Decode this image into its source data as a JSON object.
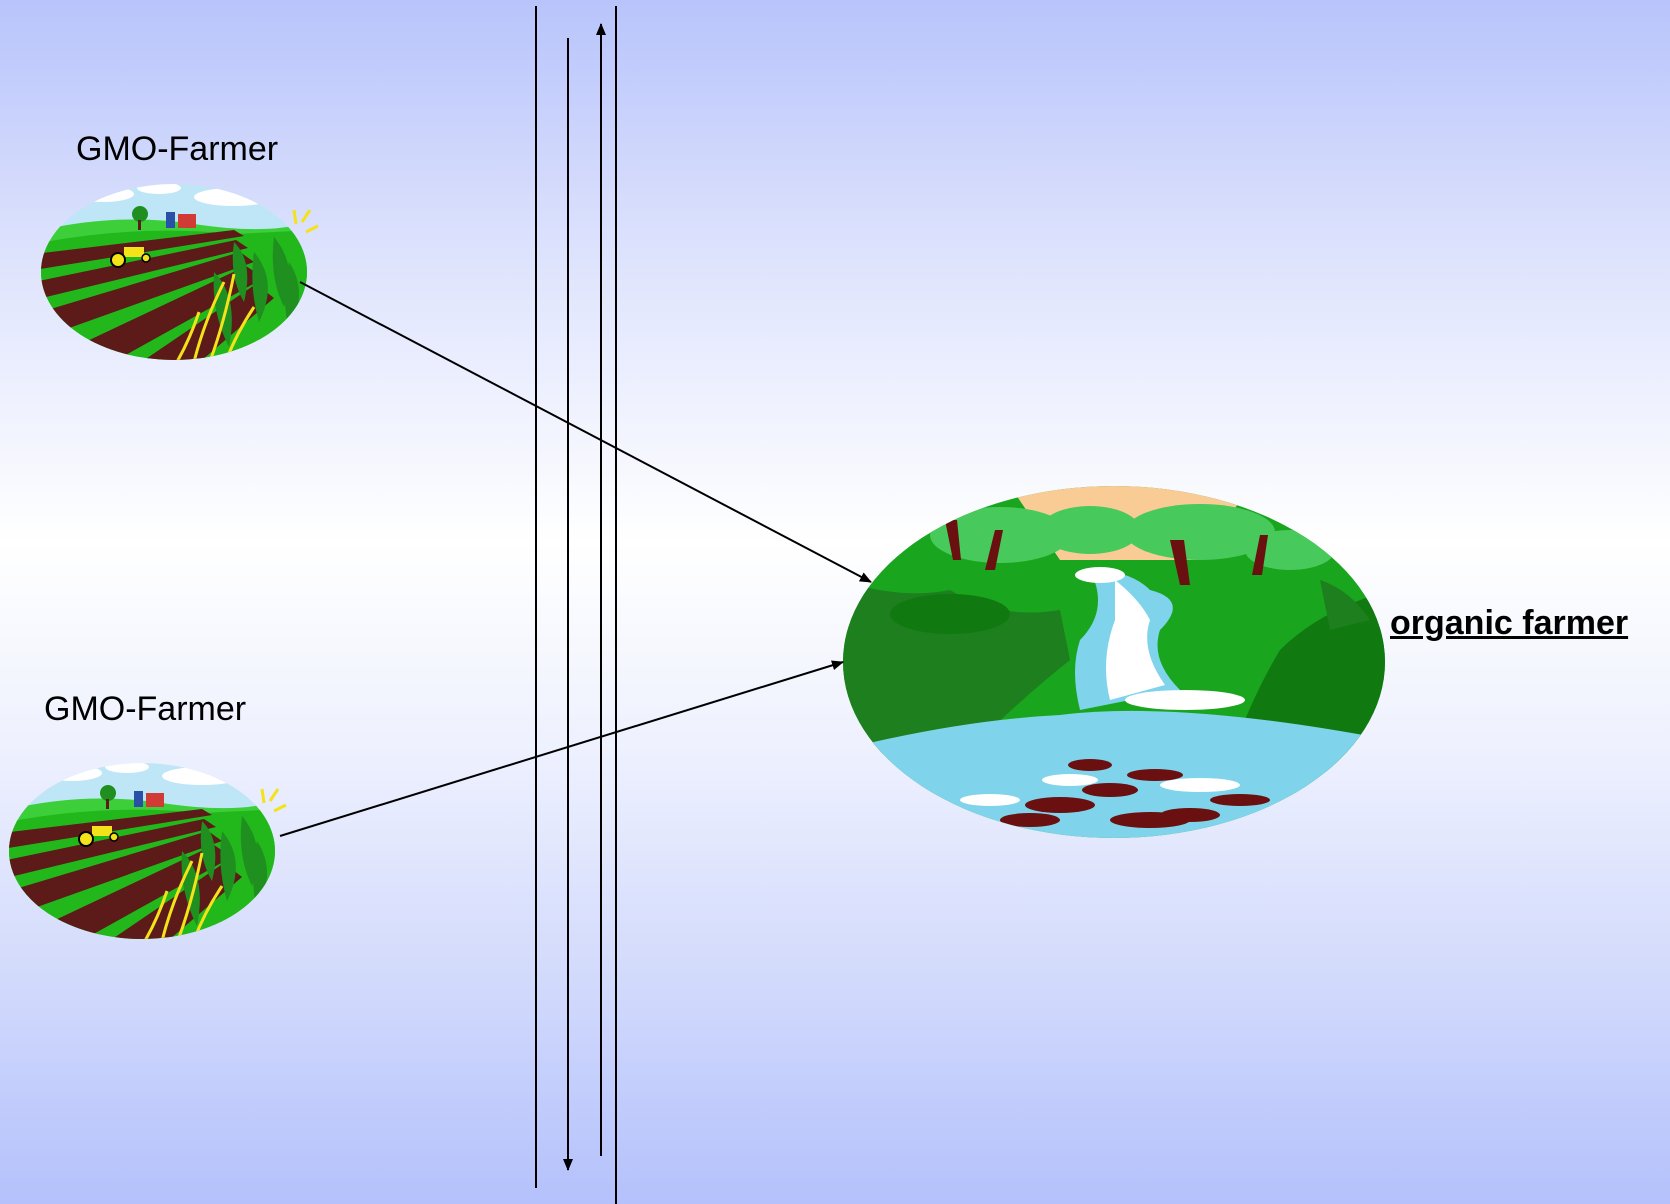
{
  "labels": {
    "gmo_farmer_top": "GMO-Farmer",
    "gmo_farmer_bottom": "GMO-Farmer",
    "organic_farmer": "organic farmer"
  },
  "icons": {
    "gmo_farm": "farm-field-icon",
    "organic_farm": "waterfall-forest-icon"
  },
  "colors": {
    "background_edge": "#b4c1fb",
    "background_center": "#ffffff",
    "line": "#000000",
    "field_green": "#22b81c",
    "soil": "#5c1a18",
    "forest_green": "#1aa51f",
    "water": "#7fd3ea",
    "sky_peach": "#f8cc94"
  }
}
